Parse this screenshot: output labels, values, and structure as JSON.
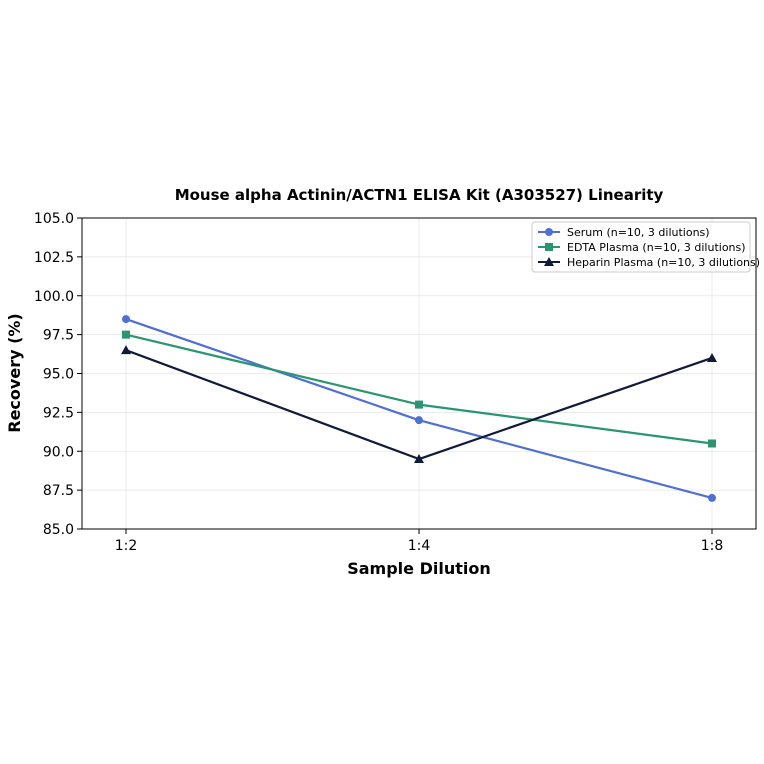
{
  "chart_data": {
    "type": "line",
    "title": "Mouse alpha Actinin/ACTN1 ELISA Kit (A303527) Linearity",
    "xlabel": "Sample Dilution",
    "ylabel": "Recovery (%)",
    "categories": [
      "1:2",
      "1:4",
      "1:8"
    ],
    "ylim": [
      85.0,
      105.0
    ],
    "yticks": [
      "85.0",
      "87.5",
      "90.0",
      "92.5",
      "95.0",
      "97.5",
      "100.0",
      "102.5",
      "105.0"
    ],
    "grid": true,
    "legend_position": "top-right",
    "series": [
      {
        "name": "Serum (n=10, 3 dilutions)",
        "values": [
          98.5,
          92.0,
          87.0
        ],
        "color": "#4f6fd4",
        "marker": "circle"
      },
      {
        "name": "EDTA Plasma (n=10, 3 dilutions)",
        "values": [
          97.5,
          93.0,
          90.5
        ],
        "color": "#2a9670",
        "marker": "square"
      },
      {
        "name": "Heparin Plasma (n=10, 3 dilutions)",
        "values": [
          96.5,
          89.5,
          96.0
        ],
        "color": "#121a3a",
        "marker": "triangle"
      }
    ]
  }
}
